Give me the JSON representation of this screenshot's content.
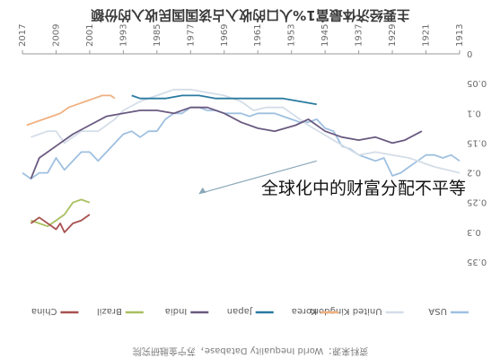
{
  "chart_data": {
    "type": "line",
    "title": "主要经济体最富1%人口的收入占该国国民收入的份额",
    "overlay_caption": "全球化中的财富分配不平等",
    "source": "资料来源：World Inequality Database，苏宁金融研究院",
    "y_axis_side": "right",
    "ylim": [
      0,
      0.35
    ],
    "y_ticks": [
      "0",
      "0.05",
      "0.1",
      "0.15",
      "0.2",
      "0.25",
      "0.3",
      "0.35"
    ],
    "xlim": [
      1913,
      2017
    ],
    "x_ticks": [
      "1913",
      "1921",
      "1929",
      "1937",
      "1945",
      "1953",
      "1961",
      "1969",
      "1977",
      "1985",
      "1993",
      "2001",
      "2009",
      "2017"
    ],
    "grid": false,
    "legend_position": "bottom",
    "series": [
      {
        "name": "USA",
        "color": "#9fc0e0",
        "x": [
          1913,
          1915,
          1917,
          1919,
          1921,
          1923,
          1925,
          1927,
          1929,
          1931,
          1933,
          1935,
          1937,
          1939,
          1941,
          1943,
          1945,
          1947,
          1949,
          1951,
          1953,
          1955,
          1957,
          1959,
          1961,
          1963,
          1965,
          1967,
          1969,
          1971,
          1973,
          1975,
          1977,
          1979,
          1981,
          1983,
          1985,
          1987,
          1989,
          1991,
          1993,
          1995,
          1997,
          1999,
          2001,
          2003,
          2005,
          2007,
          2009,
          2011,
          2013,
          2015,
          2017
        ],
        "y": [
          0.18,
          0.17,
          0.175,
          0.17,
          0.17,
          0.18,
          0.19,
          0.2,
          0.205,
          0.175,
          0.18,
          0.175,
          0.17,
          0.16,
          0.155,
          0.13,
          0.125,
          0.11,
          0.115,
          0.115,
          0.11,
          0.105,
          0.1,
          0.1,
          0.1,
          0.105,
          0.1,
          0.1,
          0.1,
          0.095,
          0.095,
          0.09,
          0.09,
          0.1,
          0.1,
          0.11,
          0.13,
          0.13,
          0.14,
          0.13,
          0.135,
          0.15,
          0.165,
          0.18,
          0.165,
          0.165,
          0.18,
          0.195,
          0.175,
          0.2,
          0.2,
          0.21,
          0.2
        ]
      },
      {
        "name": "United Kingdom",
        "color": "#d4dde8",
        "x": [
          1913,
          1919,
          1925,
          1929,
          1933,
          1937,
          1949,
          1955,
          1959,
          1962,
          1965,
          1969,
          1973,
          1977,
          1981,
          1985,
          1989,
          1993,
          1995,
          1999,
          2003,
          2007,
          2009,
          2011,
          2013,
          2015
        ],
        "y": [
          0.2,
          0.19,
          0.175,
          0.17,
          0.165,
          0.17,
          0.12,
          0.09,
          0.09,
          0.095,
          0.08,
          0.07,
          0.065,
          0.06,
          0.06,
          0.07,
          0.08,
          0.095,
          0.11,
          0.13,
          0.13,
          0.15,
          0.13,
          0.13,
          0.135,
          0.14
        ]
      },
      {
        "name": "Korea",
        "color": "#f0b080",
        "x": [
          1995,
          1996,
          1998,
          2000,
          2002,
          2004,
          2006,
          2008,
          2010,
          2012,
          2014,
          2016
        ],
        "y": [
          0.075,
          0.07,
          0.07,
          0.075,
          0.08,
          0.085,
          0.09,
          0.1,
          0.105,
          0.11,
          0.115,
          0.12
        ]
      },
      {
        "name": "Japan",
        "color": "#2a7aa0",
        "x": [
          1947,
          1951,
          1955,
          1961,
          1967,
          1971,
          1975,
          1979,
          1983,
          1985,
          1989,
          1991
        ],
        "y": [
          0.085,
          0.08,
          0.075,
          0.075,
          0.075,
          0.075,
          0.07,
          0.07,
          0.075,
          0.075,
          0.075,
          0.07
        ]
      },
      {
        "name": "India",
        "color": "#6a5a80",
        "x": [
          1922,
          1926,
          1929,
          1933,
          1937,
          1941,
          1945,
          1949,
          1952,
          1957,
          1961,
          1965,
          1969,
          1973,
          1977,
          1981,
          1985,
          1989,
          1993,
          1997,
          2001,
          2005,
          2009,
          2013,
          2015
        ],
        "y": [
          0.13,
          0.145,
          0.15,
          0.14,
          0.145,
          0.14,
          0.13,
          0.11,
          0.12,
          0.13,
          0.125,
          0.115,
          0.1,
          0.09,
          0.09,
          0.1,
          0.095,
          0.095,
          0.1,
          0.105,
          0.12,
          0.135,
          0.155,
          0.175,
          0.21
        ]
      },
      {
        "name": "Brazil",
        "color": "#a8c060",
        "x": [
          2001,
          2003,
          2005,
          2007,
          2009,
          2011,
          2013,
          2015
        ],
        "y": [
          0.25,
          0.245,
          0.25,
          0.27,
          0.28,
          0.29,
          0.285,
          0.28
        ]
      },
      {
        "name": "China",
        "color": "#a85050",
        "x": [
          2001,
          2003,
          2005,
          2007,
          2008,
          2009,
          2011,
          2013,
          2015
        ],
        "y": [
          0.27,
          0.28,
          0.285,
          0.3,
          0.285,
          0.295,
          0.285,
          0.275,
          0.285
        ]
      }
    ]
  }
}
